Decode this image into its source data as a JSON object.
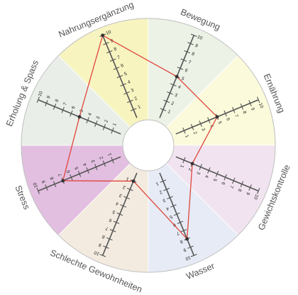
{
  "chart_data": {
    "type": "radar",
    "categories": [
      "Bewegung",
      "Ernährung",
      "Gewichtskontrolle",
      "Wasser",
      "Schlechte Gewohnheiten",
      "Stress",
      "Erholung & Spass",
      "Nahrungsergänzung"
    ],
    "values": [
      5,
      5,
      2,
      8,
      1,
      7,
      5,
      10
    ],
    "scale_min": 0,
    "scale_max": 10,
    "tick_labels": [
      "1",
      "2",
      "3",
      "4",
      "5",
      "6",
      "7",
      "8",
      "9",
      "10"
    ],
    "colors": {
      "sectors": [
        "#ecf2e6",
        "#fbfbdb",
        "#f1e4f0",
        "#e6ebf5",
        "#f3ebe0",
        "#e2bfe0",
        "#e9efe8",
        "#f7f4c0"
      ],
      "series": "#e0453c",
      "axis": "#555555",
      "rim": "#bdbdbd"
    },
    "grid": false,
    "legend": "none"
  }
}
